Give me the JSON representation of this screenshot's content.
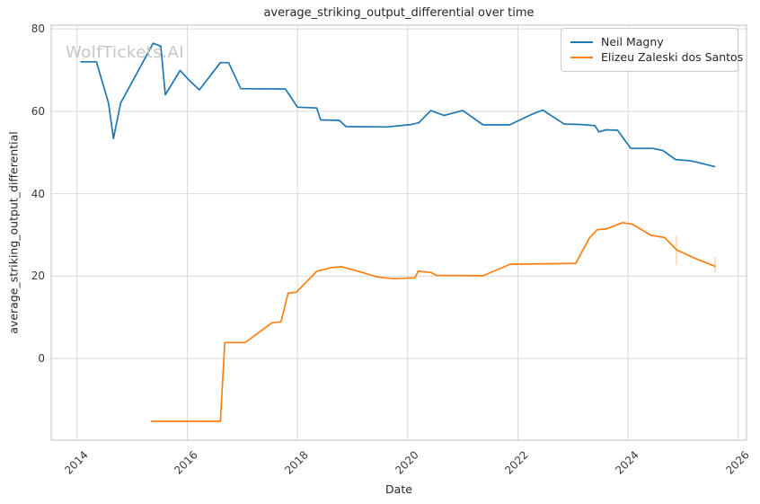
{
  "figure": {
    "watermark": "WolfTickets.AI",
    "background_color": "#ffffff",
    "grid_color": "#d9d9d9",
    "spine_color": "#cccccc",
    "text_color": "#262626",
    "tick_color": "#3a3a3a"
  },
  "chart_data": {
    "type": "line",
    "title": "average_striking_output_differential over time",
    "xlabel": "Date",
    "ylabel": "average_striking_output_differential",
    "xlim": [
      2013.53,
      2026.15
    ],
    "ylim": [
      -19.8,
      80.9
    ],
    "x_ticks": [
      2014,
      2016,
      2018,
      2020,
      2022,
      2024,
      2026
    ],
    "x_tick_labels": [
      "2014",
      "2016",
      "2018",
      "2020",
      "2022",
      "2024",
      "2026"
    ],
    "y_ticks": [
      0,
      20,
      40,
      60,
      80
    ],
    "y_tick_labels": [
      "0",
      "20",
      "40",
      "60",
      "80"
    ],
    "grid": true,
    "legend_position": "upper right",
    "series": [
      {
        "name": "Neil Magny",
        "color": "#1f77b4",
        "points": [
          [
            2014.07,
            72.0
          ],
          [
            2014.35,
            72.0
          ],
          [
            2014.57,
            62.0
          ],
          [
            2014.66,
            53.4
          ],
          [
            2014.79,
            62.0
          ],
          [
            2015.38,
            76.5
          ],
          [
            2015.52,
            75.8
          ],
          [
            2015.6,
            64.0
          ],
          [
            2015.87,
            69.9
          ],
          [
            2016.05,
            67.3
          ],
          [
            2016.22,
            65.2
          ],
          [
            2016.6,
            71.8
          ],
          [
            2016.75,
            71.8
          ],
          [
            2016.97,
            65.5
          ],
          [
            2017.78,
            65.4
          ],
          [
            2018.0,
            61.0
          ],
          [
            2018.35,
            60.8
          ],
          [
            2018.42,
            57.9
          ],
          [
            2018.76,
            57.8
          ],
          [
            2018.88,
            56.3
          ],
          [
            2019.62,
            56.2
          ],
          [
            2020.06,
            56.8
          ],
          [
            2020.2,
            57.2
          ],
          [
            2020.42,
            60.2
          ],
          [
            2020.52,
            59.7
          ],
          [
            2020.66,
            59.0
          ],
          [
            2021.0,
            60.2
          ],
          [
            2021.37,
            56.7
          ],
          [
            2021.85,
            56.7
          ],
          [
            2022.24,
            59.2
          ],
          [
            2022.45,
            60.3
          ],
          [
            2022.84,
            56.9
          ],
          [
            2023.16,
            56.8
          ],
          [
            2023.4,
            56.5
          ],
          [
            2023.47,
            55.0
          ],
          [
            2023.6,
            55.5
          ],
          [
            2023.81,
            55.4
          ],
          [
            2024.05,
            51.0
          ],
          [
            2024.45,
            51.0
          ],
          [
            2024.63,
            50.5
          ],
          [
            2024.86,
            48.3
          ],
          [
            2025.12,
            48.0
          ],
          [
            2025.27,
            47.6
          ],
          [
            2025.57,
            46.6
          ]
        ],
        "error_ticks": []
      },
      {
        "name": "Elizeu Zaleski dos Santos",
        "color": "#ff7f0e",
        "points": [
          [
            2015.35,
            -15.2
          ],
          [
            2016.6,
            -15.2
          ],
          [
            2016.68,
            3.9
          ],
          [
            2017.05,
            3.9
          ],
          [
            2017.54,
            8.7
          ],
          [
            2017.7,
            8.9
          ],
          [
            2017.83,
            15.9
          ],
          [
            2017.98,
            16.1
          ],
          [
            2018.35,
            21.2
          ],
          [
            2018.62,
            22.1
          ],
          [
            2018.8,
            22.3
          ],
          [
            2019.15,
            21.0
          ],
          [
            2019.45,
            19.8
          ],
          [
            2019.75,
            19.4
          ],
          [
            2020.13,
            19.6
          ],
          [
            2020.19,
            21.2
          ],
          [
            2020.42,
            20.9
          ],
          [
            2020.52,
            20.2
          ],
          [
            2021.37,
            20.1
          ],
          [
            2021.86,
            22.9
          ],
          [
            2023.05,
            23.1
          ],
          [
            2023.3,
            29.3
          ],
          [
            2023.44,
            31.3
          ],
          [
            2023.62,
            31.5
          ],
          [
            2023.9,
            33.0
          ],
          [
            2024.08,
            32.6
          ],
          [
            2024.42,
            29.9
          ],
          [
            2024.66,
            29.4
          ],
          [
            2024.88,
            26.4
          ],
          [
            2025.2,
            24.4
          ],
          [
            2025.58,
            22.4
          ]
        ],
        "error_ticks": [
          {
            "x": 2024.88,
            "y_low": 22.7,
            "y_high": 29.8
          },
          {
            "x": 2025.58,
            "y_low": 20.9,
            "y_high": 24.7
          }
        ]
      }
    ]
  }
}
